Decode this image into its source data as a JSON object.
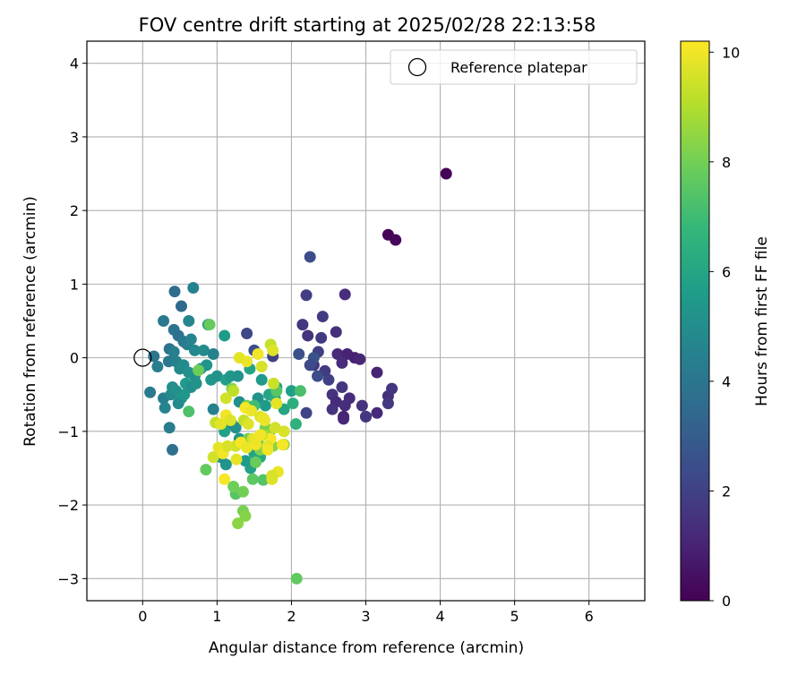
{
  "chart_data": {
    "type": "scatter",
    "title": "FOV centre drift starting at 2025/02/28 22:13:58",
    "xlabel": "Angular distance from reference (arcmin)",
    "ylabel": "Rotation from reference (arcmin)",
    "xlim": [
      -0.75,
      6.75
    ],
    "ylim": [
      -3.3,
      4.3
    ],
    "x_ticks": [
      0,
      1,
      2,
      3,
      4,
      5,
      6
    ],
    "y_ticks": [
      -3,
      -2,
      -1,
      0,
      1,
      2,
      3,
      4
    ],
    "grid": true,
    "legend": {
      "placement": "upper-right",
      "entries": [
        "Reference platepar"
      ]
    },
    "reference_point": {
      "x": 0,
      "y": 0
    },
    "colorbar": {
      "label": "Hours from first FF file",
      "colormap": "viridis",
      "min": 0,
      "max": 10.2,
      "ticks": [
        0,
        2,
        4,
        6,
        8,
        10
      ]
    },
    "colormap_stops": [
      "#440154",
      "#482878",
      "#3e4989",
      "#31688e",
      "#26828e",
      "#1f9e89",
      "#35b779",
      "#6ece58",
      "#b5de2b",
      "#fde725"
    ],
    "series": [
      {
        "x": [
          4.08,
          3.3,
          3.4,
          2.25,
          2.2,
          2.42,
          2.72,
          2.15,
          2.6,
          2.4,
          2.36,
          2.22,
          2.62,
          2.75,
          2.85,
          2.68,
          2.92,
          3.15,
          2.45,
          2.3,
          2.5,
          2.55,
          2.78,
          2.6,
          2.2,
          2.35,
          2.68,
          2.72,
          2.55,
          2.7,
          3.0,
          3.3,
          3.35,
          3.3,
          3.15,
          2.95,
          3.0,
          2.1,
          2.3,
          2.7,
          2.25,
          1.4,
          1.5,
          1.75
        ],
        "y": [
          2.5,
          1.67,
          1.6,
          1.37,
          0.85,
          0.56,
          0.86,
          0.45,
          0.35,
          0.27,
          0.08,
          0.3,
          0.05,
          0.05,
          0.0,
          -0.07,
          -0.02,
          -0.2,
          -0.18,
          -0.1,
          -0.3,
          -0.5,
          -0.55,
          -0.6,
          -0.75,
          -0.25,
          -0.4,
          -0.65,
          -0.7,
          -0.8,
          -0.8,
          -0.52,
          -0.42,
          -0.62,
          -0.75,
          -0.65,
          -0.8,
          0.05,
          0.0,
          -0.83,
          -0.1,
          0.33,
          0.1,
          0.02
        ],
        "hours": [
          0.1,
          0.15,
          0.2,
          2.4,
          1.9,
          1.8,
          1.3,
          1.6,
          1.4,
          1.8,
          1.9,
          1.5,
          1.2,
          1.0,
          0.9,
          1.3,
          1.1,
          1.0,
          1.8,
          1.7,
          2.0,
          1.5,
          1.3,
          1.2,
          2.1,
          2.4,
          1.6,
          1.3,
          1.5,
          1.0,
          0.9,
          1.4,
          1.6,
          1.7,
          1.2,
          1.5,
          1.6,
          2.5,
          2.6,
          1.1,
          2.3,
          2.2,
          2.4,
          2.0
        ]
      },
      {
        "x": [
          0.43,
          0.68,
          0.52,
          0.28,
          0.62,
          0.42,
          0.48,
          0.55,
          0.6,
          0.65,
          0.7,
          0.36,
          0.42,
          0.82,
          0.88,
          0.95,
          1.1,
          0.15,
          0.2,
          0.35,
          0.45,
          0.5,
          0.55,
          0.62,
          0.7,
          0.78,
          0.86,
          0.92,
          1.0,
          0.1,
          0.28,
          0.3,
          0.38,
          0.4,
          0.45,
          0.52,
          0.58,
          0.65,
          0.72,
          0.48,
          0.56,
          0.36,
          0.4,
          1.6,
          1.8,
          2.0,
          1.7,
          1.55,
          1.9,
          1.65,
          1.45,
          1.3,
          1.2,
          1.1,
          1.25,
          1.3,
          1.35,
          1.5,
          1.58,
          1.62,
          1.7,
          1.45,
          1.38,
          1.12,
          1.05,
          0.95,
          1.12,
          1.18,
          1.28,
          1.44,
          1.78,
          2.02,
          2.06
        ],
        "y": [
          0.9,
          0.95,
          0.7,
          0.5,
          0.5,
          0.38,
          0.3,
          0.22,
          0.18,
          0.25,
          0.1,
          0.12,
          0.08,
          0.1,
          0.45,
          0.05,
          0.3,
          0.02,
          -0.12,
          -0.05,
          -0.05,
          -0.15,
          -0.1,
          -0.2,
          -0.25,
          -0.15,
          -0.1,
          -0.3,
          -0.25,
          -0.47,
          -0.55,
          -0.68,
          -0.5,
          -0.4,
          -0.45,
          -0.55,
          -0.35,
          -0.4,
          -0.35,
          -0.62,
          -0.5,
          -0.95,
          -1.25,
          -0.3,
          -0.4,
          -0.45,
          -0.5,
          -0.55,
          -0.7,
          -0.65,
          -0.7,
          -0.6,
          -0.9,
          -1.0,
          -0.95,
          -1.1,
          -1.15,
          -1.3,
          -1.35,
          -1.25,
          -1.05,
          -1.5,
          -1.4,
          -1.45,
          -1.35,
          -0.7,
          -0.3,
          -0.25,
          -0.25,
          -0.15,
          -0.55,
          -0.62,
          -0.9
        ],
        "hours": [
          3.6,
          4.5,
          3.5,
          4.2,
          4.7,
          4.0,
          3.8,
          4.1,
          4.3,
          4.6,
          4.8,
          3.9,
          4.4,
          4.9,
          5.2,
          4.5,
          5.6,
          4.0,
          4.3,
          4.1,
          4.5,
          4.8,
          4.9,
          5.1,
          5.0,
          4.7,
          5.3,
          5.4,
          5.2,
          4.2,
          4.4,
          4.6,
          4.8,
          5.0,
          5.1,
          5.3,
          5.5,
          5.0,
          5.2,
          4.9,
          5.4,
          4.3,
          3.8,
          5.5,
          5.8,
          5.7,
          5.9,
          5.2,
          6.0,
          5.6,
          5.3,
          5.0,
          4.7,
          5.8,
          5.1,
          5.4,
          5.6,
          5.9,
          6.1,
          6.2,
          6.0,
          5.8,
          5.5,
          5.3,
          5.0,
          4.5,
          5.7,
          5.4,
          5.2,
          5.9,
          6.3,
          6.4,
          6.5
        ]
      },
      {
        "x": [
          0.9,
          0.62,
          0.75,
          1.2,
          1.4,
          1.45,
          1.8,
          1.65,
          1.55,
          1.75,
          0.85,
          1.25,
          1.35,
          1.48,
          1.52,
          1.62,
          1.58,
          1.35,
          1.38,
          1.28,
          1.22,
          2.07,
          1.42,
          1.9,
          2.12,
          1.68,
          1.5
        ],
        "y": [
          0.45,
          -0.73,
          -0.17,
          -0.42,
          -0.65,
          -0.7,
          -0.45,
          -0.95,
          -1.15,
          -1.2,
          -1.52,
          -1.85,
          -1.82,
          -1.65,
          -1.42,
          -1.66,
          -1.25,
          -2.08,
          -2.15,
          -2.25,
          -1.75,
          -3.0,
          -1.1,
          -1.18,
          -0.45,
          -1.05,
          -0.65
        ],
        "hours": [
          7.8,
          7.3,
          7.9,
          8.2,
          8.0,
          7.6,
          7.5,
          8.1,
          7.9,
          8.3,
          7.7,
          7.5,
          8.0,
          7.6,
          7.8,
          7.4,
          8.2,
          8.1,
          8.3,
          8.4,
          7.9,
          7.7,
          8.0,
          8.5,
          7.2,
          8.6,
          7.0
        ]
      },
      {
        "x": [
          1.72,
          1.75,
          1.4,
          1.55,
          1.3,
          1.6,
          1.12,
          1.22,
          1.38,
          1.46,
          1.58,
          1.64,
          1.76,
          1.8,
          1.9,
          1.72,
          0.98,
          1.05,
          1.12,
          1.18,
          1.25,
          1.32,
          1.4,
          1.48,
          1.52,
          1.6,
          1.68,
          1.74,
          1.82,
          1.88,
          0.95,
          1.02,
          1.08,
          1.14,
          1.36,
          1.42,
          1.62,
          1.68,
          1.78,
          1.26,
          1.1,
          1.74,
          1.52,
          1.58
        ],
        "y": [
          0.18,
          0.1,
          -0.05,
          0.05,
          0.0,
          -0.12,
          -0.55,
          -0.45,
          -0.68,
          -0.72,
          -0.8,
          -0.85,
          -0.35,
          -0.62,
          -1.0,
          -1.1,
          -0.88,
          -0.9,
          -0.78,
          -0.85,
          -1.2,
          -1.15,
          -1.22,
          -1.1,
          -1.18,
          -1.05,
          -1.2,
          -1.65,
          -1.55,
          -1.18,
          -1.35,
          -1.22,
          -1.3,
          -1.2,
          -0.85,
          -0.9,
          -0.82,
          -1.25,
          -0.95,
          -1.38,
          -1.65,
          -1.6,
          -1.1,
          -1.05
        ],
        "hours": [
          9.3,
          9.7,
          9.9,
          10.0,
          9.8,
          9.6,
          9.5,
          9.2,
          10.1,
          9.9,
          9.7,
          10.0,
          9.4,
          9.8,
          9.6,
          10.1,
          9.3,
          9.8,
          10.0,
          9.7,
          9.5,
          10.1,
          9.9,
          9.6,
          10.0,
          9.4,
          9.8,
          9.7,
          9.9,
          10.1,
          9.5,
          9.8,
          10.0,
          9.6,
          9.3,
          9.7,
          9.9,
          10.0,
          9.5,
          9.8,
          10.1,
          9.6,
          9.9,
          10.0
        ]
      }
    ]
  }
}
